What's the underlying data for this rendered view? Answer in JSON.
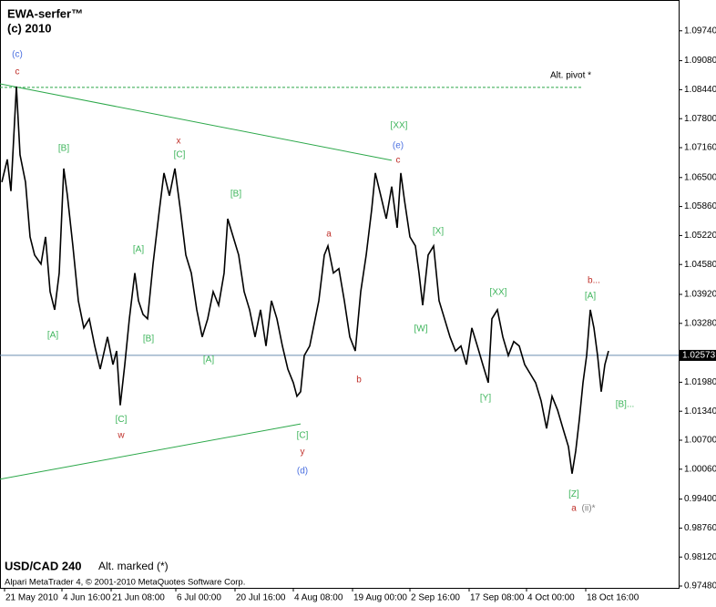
{
  "chart_data": {
    "type": "line",
    "title": "EWA-serfer™",
    "subtitle": "(c) 2010",
    "symbol": "USD/CAD 240",
    "note": "Alt. marked (*)",
    "footer": "Alpari MetaTrader 4, © 2001-2010 MetaQuotes Software Corp.",
    "color": "#000000",
    "x": [
      -3,
      3,
      7,
      13,
      17,
      23,
      28,
      33,
      40,
      45,
      50,
      55,
      60,
      65,
      69,
      75,
      81,
      87,
      93,
      99,
      105,
      113,
      119,
      123,
      127,
      132,
      137,
      143,
      147,
      152,
      157,
      163,
      170,
      175,
      181,
      187,
      193,
      199,
      205,
      211,
      217,
      223,
      229,
      235,
      241,
      245,
      251,
      257,
      263,
      269,
      275,
      281,
      287,
      293,
      299,
      305,
      311,
      317,
      321,
      325,
      329,
      335,
      340,
      345,
      351,
      355,
      361,
      367,
      373,
      379,
      385,
      391,
      397,
      403,
      407,
      413,
      419,
      425,
      431,
      435,
      439,
      445,
      451,
      455,
      459,
      465,
      471,
      477,
      483,
      489,
      495,
      501,
      507,
      513,
      519,
      525,
      531,
      535,
      541,
      547,
      553,
      559,
      565,
      571,
      577,
      583,
      589,
      595,
      601,
      607,
      613,
      619,
      623,
      627,
      631,
      635,
      639,
      643,
      647,
      651,
      655,
      659,
      663
    ],
    "values": [
      1.064,
      1.069,
      1.062,
      1.0851,
      1.07,
      1.064,
      1.0519,
      1.0479,
      1.0459,
      1.0519,
      1.0398,
      1.0358,
      1.0439,
      1.067,
      1.061,
      1.0499,
      1.0378,
      1.0318,
      1.0338,
      1.0278,
      1.0227,
      1.0298,
      1.0237,
      1.0267,
      1.0147,
      1.0237,
      1.0338,
      1.0439,
      1.0378,
      1.0348,
      1.0338,
      1.0459,
      1.0579,
      1.066,
      1.061,
      1.067,
      1.0579,
      1.0479,
      1.0439,
      1.0358,
      1.0298,
      1.0338,
      1.0398,
      1.0368,
      1.0439,
      1.0559,
      1.0519,
      1.0479,
      1.0398,
      1.0358,
      1.0298,
      1.0358,
      1.0278,
      1.0378,
      1.0338,
      1.0278,
      1.0227,
      1.0197,
      1.0167,
      1.0177,
      1.0257,
      1.0278,
      1.0328,
      1.0378,
      1.0479,
      1.0499,
      1.0439,
      1.0449,
      1.0378,
      1.0298,
      1.0267,
      1.0398,
      1.0479,
      1.0579,
      1.066,
      1.061,
      1.0559,
      1.063,
      1.0539,
      1.066,
      1.06,
      1.0519,
      1.0499,
      1.0439,
      1.0368,
      1.0479,
      1.0499,
      1.0378,
      1.0338,
      1.0298,
      1.0267,
      1.0278,
      1.0237,
      1.0318,
      1.0278,
      1.0237,
      1.0197,
      1.0338,
      1.0358,
      1.0298,
      1.0257,
      1.0288,
      1.0278,
      1.0237,
      1.0217,
      1.0197,
      1.0157,
      1.0096,
      1.0167,
      1.0137,
      1.0096,
      1.0056,
      0.9996,
      1.0046,
      1.0116,
      1.0197,
      1.0257,
      1.0358,
      1.0318,
      1.0257,
      1.0177,
      1.0237,
      1.0267
    ],
    "xlim": [
      -5,
      740
    ],
    "ylim": [
      0.9744,
      1.1042
    ],
    "xticks": [
      {
        "value": 0,
        "label": "21 May 2010"
      },
      {
        "value": 63,
        "label": "4 Jun 16:00"
      },
      {
        "value": 117,
        "label": "21 Jun 08:00"
      },
      {
        "value": 188,
        "label": "6 Jul 00:00"
      },
      {
        "value": 253,
        "label": "20 Jul 16:00"
      },
      {
        "value": 317,
        "label": "4 Aug 08:00"
      },
      {
        "value": 382,
        "label": "19 Aug 00:00"
      },
      {
        "value": 445,
        "label": "2 Sep 16:00"
      },
      {
        "value": 510,
        "label": "17 Sep 08:00"
      },
      {
        "value": 573,
        "label": "4 Oct 00:00"
      },
      {
        "value": 638,
        "label": "18 Oct 16:00"
      }
    ],
    "yticks": [
      {
        "value": 1.0974,
        "label": "1.09740"
      },
      {
        "value": 1.0908,
        "label": "1.09080"
      },
      {
        "value": 1.0844,
        "label": "1.08440"
      },
      {
        "value": 1.078,
        "label": "1.07800"
      },
      {
        "value": 1.0716,
        "label": "1.07160"
      },
      {
        "value": 1.065,
        "label": "1.06500"
      },
      {
        "value": 1.0586,
        "label": "1.05860"
      },
      {
        "value": 1.0522,
        "label": "1.05220"
      },
      {
        "value": 1.0458,
        "label": "1.04580"
      },
      {
        "value": 1.0392,
        "label": "1.03920"
      },
      {
        "value": 1.0328,
        "label": "1.03280"
      },
      {
        "value": 1.0198,
        "label": "1.01980"
      },
      {
        "value": 1.0134,
        "label": "1.01340"
      },
      {
        "value": 1.007,
        "label": "1.00700"
      },
      {
        "value": 1.0006,
        "label": "1.00060"
      },
      {
        "value": 0.994,
        "label": "0.99400"
      },
      {
        "value": 0.9876,
        "label": "0.98760"
      },
      {
        "value": 0.9812,
        "label": "0.98120"
      },
      {
        "value": 0.9748,
        "label": "0.97480"
      }
    ],
    "current_price": {
      "value": 1.02573,
      "label": "1.02573",
      "color": "#6b8fb0"
    },
    "trendlines": [
      {
        "x": [
          -5,
          425
        ],
        "y": [
          1.0857,
          1.0688
        ],
        "color": "#2ca84a"
      },
      {
        "x": [
          -5,
          325
        ],
        "y": [
          0.9984,
          1.0106
        ],
        "color": "#2ca84a"
      }
    ],
    "pivot": {
      "x": [
        -5,
        635
      ],
      "y": 1.0849,
      "text": "Alt. pivot *",
      "color": "#2ca84a"
    },
    "annotations": [
      {
        "text": "(c)",
        "x": 14,
        "y": 1.0922,
        "color": "#4a6fe0"
      },
      {
        "text": "c",
        "x": 14,
        "y": 1.0883,
        "color": "#c0302a"
      },
      {
        "text": "[B]",
        "x": 65,
        "y": 1.0714,
        "color": "#3cb45a"
      },
      {
        "text": "x",
        "x": 191,
        "y": 1.073,
        "color": "#c0302a"
      },
      {
        "text": "[C]",
        "x": 192,
        "y": 1.07,
        "color": "#3cb45a"
      },
      {
        "text": "[B]",
        "x": 254,
        "y": 1.0614,
        "color": "#3cb45a"
      },
      {
        "text": "[A]",
        "x": 147,
        "y": 1.0491,
        "color": "#3cb45a"
      },
      {
        "text": "[A]",
        "x": 53,
        "y": 1.0302,
        "color": "#3cb45a"
      },
      {
        "text": "[B]",
        "x": 158,
        "y": 1.0294,
        "color": "#3cb45a"
      },
      {
        "text": "[A]",
        "x": 224,
        "y": 1.0247,
        "color": "#3cb45a"
      },
      {
        "text": "[C]",
        "x": 128,
        "y": 1.0116,
        "color": "#3cb45a"
      },
      {
        "text": "w",
        "x": 128,
        "y": 1.008,
        "color": "#c0302a"
      },
      {
        "text": "a",
        "x": 356,
        "y": 1.0525,
        "color": "#c0302a"
      },
      {
        "text": "b",
        "x": 389,
        "y": 1.0203,
        "color": "#c0302a"
      },
      {
        "text": "[C]",
        "x": 327,
        "y": 1.008,
        "color": "#3cb45a"
      },
      {
        "text": "y",
        "x": 327,
        "y": 1.0044,
        "color": "#c0302a"
      },
      {
        "text": "(d)",
        "x": 327,
        "y": 1.0002,
        "color": "#4a6fe0"
      },
      {
        "text": "[XX]",
        "x": 433,
        "y": 1.0765,
        "color": "#3cb45a",
        "size": 17
      },
      {
        "text": "(e)",
        "x": 432,
        "y": 1.072,
        "color": "#4a6fe0"
      },
      {
        "text": "c",
        "x": 432,
        "y": 1.0688,
        "color": "#c0302a"
      },
      {
        "text": "[X]",
        "x": 476,
        "y": 1.0531,
        "color": "#3cb45a"
      },
      {
        "text": "[W]",
        "x": 457,
        "y": 1.0316,
        "color": "#3cb45a"
      },
      {
        "text": "[XX]",
        "x": 542,
        "y": 1.0396,
        "color": "#3cb45a"
      },
      {
        "text": "[Y]",
        "x": 528,
        "y": 1.0163,
        "color": "#3cb45a"
      },
      {
        "text": "b...",
        "x": 647,
        "y": 1.0422,
        "color": "#c0302a"
      },
      {
        "text": "[A]",
        "x": 643,
        "y": 1.0388,
        "color": "#3cb45a"
      },
      {
        "text": "[B]...",
        "x": 681,
        "y": 1.0149,
        "color": "#3cb45a"
      },
      {
        "text": "[Z]",
        "x": 625,
        "y": 0.9951,
        "color": "#3cb45a"
      },
      {
        "text": "a",
        "x": 625,
        "y": 0.9919,
        "color": "#c0302a"
      },
      {
        "text": "(ii)*",
        "x": 641,
        "y": 0.9919,
        "color": "#808080"
      }
    ]
  }
}
